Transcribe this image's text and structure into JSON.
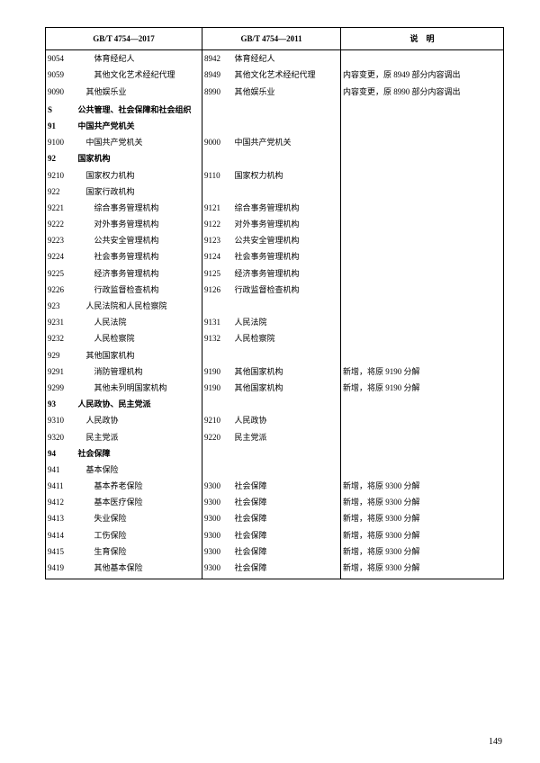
{
  "headers": {
    "col1": "GB/T 4754—2017",
    "col2": "GB/T 4754—2011",
    "col3": "说　明"
  },
  "rows": [
    {
      "c1": "9054",
      "n1": "体育经纪人",
      "i1": "ind2",
      "c2": "8942",
      "n2": "体育经纪人",
      "note": ""
    },
    {
      "c1": "9059",
      "n1": "其他文化艺术经纪代理",
      "i1": "ind2",
      "c2": "8949",
      "n2": "其他文化艺术经纪代理",
      "note": "内容变更，原 8949 部分内容调出"
    },
    {
      "c1": "9090",
      "n1": "其他娱乐业",
      "i1": "ind1",
      "c2": "8990",
      "n2": "其他娱乐业",
      "note": "内容变更，原 8990 部分内容调出"
    },
    {
      "c1": "",
      "n1": "",
      "i1": "",
      "c2": "",
      "n2": "",
      "note": ""
    },
    {
      "c1": "S",
      "n1": "公共管理、社会保障和社会组织",
      "i1": "",
      "b": true,
      "c2": "",
      "n2": "",
      "note": ""
    },
    {
      "c1": "91",
      "n1": "中国共产党机关",
      "i1": "",
      "b": true,
      "c2": "",
      "n2": "",
      "note": ""
    },
    {
      "c1": "9100",
      "n1": "中国共产党机关",
      "i1": "ind1",
      "c2": "9000",
      "n2": "中国共产党机关",
      "note": ""
    },
    {
      "c1": "92",
      "n1": "国家机构",
      "i1": "",
      "b": true,
      "c2": "",
      "n2": "",
      "note": ""
    },
    {
      "c1": "9210",
      "n1": "国家权力机构",
      "i1": "ind1",
      "c2": "9110",
      "n2": "国家权力机构",
      "note": ""
    },
    {
      "c1": "922",
      "n1": "国家行政机构",
      "i1": "ind1",
      "c2": "",
      "n2": "",
      "note": ""
    },
    {
      "c1": "9221",
      "n1": "综合事务管理机构",
      "i1": "ind2",
      "c2": "9121",
      "n2": "综合事务管理机构",
      "note": ""
    },
    {
      "c1": "9222",
      "n1": "对外事务管理机构",
      "i1": "ind2",
      "c2": "9122",
      "n2": "对外事务管理机构",
      "note": ""
    },
    {
      "c1": "9223",
      "n1": "公共安全管理机构",
      "i1": "ind2",
      "c2": "9123",
      "n2": "公共安全管理机构",
      "note": ""
    },
    {
      "c1": "9224",
      "n1": "社会事务管理机构",
      "i1": "ind2",
      "c2": "9124",
      "n2": "社会事务管理机构",
      "note": ""
    },
    {
      "c1": "9225",
      "n1": "经济事务管理机构",
      "i1": "ind2",
      "c2": "9125",
      "n2": "经济事务管理机构",
      "note": ""
    },
    {
      "c1": "9226",
      "n1": "行政监督检查机构",
      "i1": "ind2",
      "c2": "9126",
      "n2": "行政监督检查机构",
      "note": ""
    },
    {
      "c1": "923",
      "n1": "人民法院和人民检察院",
      "i1": "ind1",
      "c2": "",
      "n2": "",
      "note": ""
    },
    {
      "c1": "9231",
      "n1": "人民法院",
      "i1": "ind2",
      "c2": "9131",
      "n2": "人民法院",
      "note": ""
    },
    {
      "c1": "9232",
      "n1": "人民检察院",
      "i1": "ind2",
      "c2": "9132",
      "n2": "人民检察院",
      "note": ""
    },
    {
      "c1": "929",
      "n1": "其他国家机构",
      "i1": "ind1",
      "c2": "",
      "n2": "",
      "note": ""
    },
    {
      "c1": "9291",
      "n1": "消防管理机构",
      "i1": "ind2",
      "c2": "9190",
      "n2": "其他国家机构",
      "note": "新增，将原 9190 分解"
    },
    {
      "c1": "9299",
      "n1": "其他未列明国家机构",
      "i1": "ind2",
      "c2": "9190",
      "n2": "其他国家机构",
      "note": "新增，将原 9190 分解"
    },
    {
      "c1": "93",
      "n1": "人民政协、民主党派",
      "i1": "",
      "b": true,
      "c2": "",
      "n2": "",
      "note": ""
    },
    {
      "c1": "9310",
      "n1": "人民政协",
      "i1": "ind1",
      "c2": "9210",
      "n2": "人民政协",
      "note": ""
    },
    {
      "c1": "9320",
      "n1": "民主党派",
      "i1": "ind1",
      "c2": "9220",
      "n2": "民主党派",
      "note": ""
    },
    {
      "c1": "94",
      "n1": "社会保障",
      "i1": "",
      "b": true,
      "c2": "",
      "n2": "",
      "note": ""
    },
    {
      "c1": "941",
      "n1": "基本保险",
      "i1": "ind1",
      "c2": "",
      "n2": "",
      "note": ""
    },
    {
      "c1": "9411",
      "n1": "基本养老保险",
      "i1": "ind2",
      "c2": "9300",
      "n2": "社会保障",
      "note": "新增，将原 9300 分解"
    },
    {
      "c1": "9412",
      "n1": "基本医疗保险",
      "i1": "ind2",
      "c2": "9300",
      "n2": "社会保障",
      "note": "新增，将原 9300 分解"
    },
    {
      "c1": "9413",
      "n1": "失业保险",
      "i1": "ind2",
      "c2": "9300",
      "n2": "社会保障",
      "note": "新增，将原 9300 分解"
    },
    {
      "c1": "9414",
      "n1": "工伤保险",
      "i1": "ind2",
      "c2": "9300",
      "n2": "社会保障",
      "note": "新增，将原 9300 分解"
    },
    {
      "c1": "9415",
      "n1": "生育保险",
      "i1": "ind2",
      "c2": "9300",
      "n2": "社会保障",
      "note": "新增，将原 9300 分解"
    },
    {
      "c1": "9419",
      "n1": "其他基本保险",
      "i1": "ind2",
      "c2": "9300",
      "n2": "社会保障",
      "note": "新增，将原 9300 分解"
    }
  ],
  "page_number": "149"
}
